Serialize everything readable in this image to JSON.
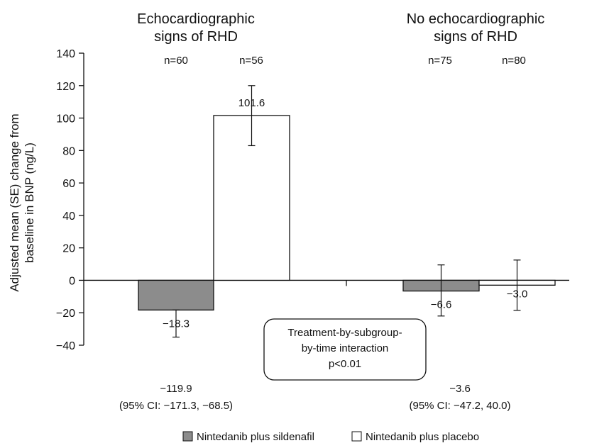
{
  "chart_data": {
    "type": "bar",
    "ylabel_line1": "Adjusted mean (SE) change from",
    "ylabel_line2": "baseline in BNP (ng/L)",
    "ylim": [
      -40,
      140
    ],
    "yticks": [
      {
        "value": 140,
        "label": "140"
      },
      {
        "value": 120,
        "label": "120"
      },
      {
        "value": 100,
        "label": "100"
      },
      {
        "value": 80,
        "label": "80"
      },
      {
        "value": 60,
        "label": "60"
      },
      {
        "value": 40,
        "label": "40"
      },
      {
        "value": 20,
        "label": "20"
      },
      {
        "value": 0,
        "label": "0"
      },
      {
        "value": -20,
        "label": "−20"
      },
      {
        "value": -40,
        "label": "−40"
      }
    ],
    "grid": false,
    "legend_position": "bottom",
    "series": [
      {
        "name": "Nintedanib plus sildenafil",
        "color": "#8c8c8c"
      },
      {
        "name": "Nintedanib plus placebo",
        "color": "#ffffff"
      }
    ],
    "groups": [
      {
        "title_line1": "Echocardiographic",
        "title_line2": "signs of RHD",
        "bars": [
          {
            "series": 0,
            "n_label": "n=60",
            "value": -18.3,
            "value_label": "−18.3",
            "err_low": -35.0,
            "err_high": -18.3
          },
          {
            "series": 1,
            "n_label": "n=56",
            "value": 101.6,
            "value_label": "101.6",
            "err_low": 83.0,
            "err_high": 120.0
          }
        ],
        "difference": "−119.9",
        "ci": "(95% CI: −171.3, −68.5)"
      },
      {
        "title_line1": "No echocardiographic",
        "title_line2": "signs of RHD",
        "bars": [
          {
            "series": 0,
            "n_label": "n=75",
            "value": -6.6,
            "value_label": "−6.6",
            "err_low": -22.0,
            "err_high": 9.5
          },
          {
            "series": 1,
            "n_label": "n=80",
            "value": -3.0,
            "value_label": "−3.0",
            "err_low": -18.5,
            "err_high": 12.5
          }
        ],
        "difference": "−3.6",
        "ci": "(95% CI: −47.2, 40.0)"
      }
    ],
    "annotation": {
      "line1": "Treatment-by-subgroup-",
      "line2": "by-time interaction",
      "line3": "p<0.01"
    }
  }
}
